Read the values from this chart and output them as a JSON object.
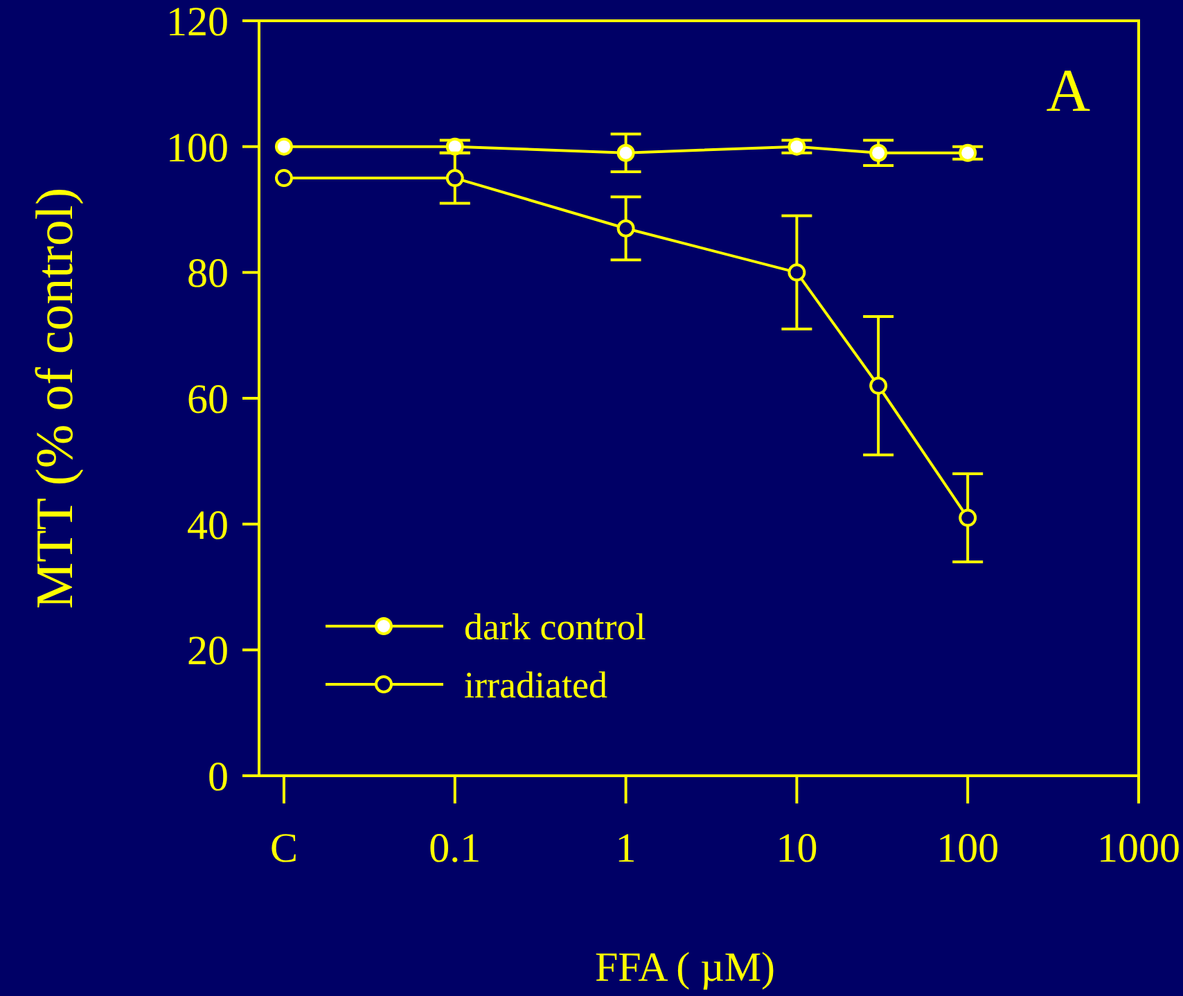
{
  "chart_data": {
    "type": "line",
    "xlabel": "FFA (  µM)",
    "ylabel": "MTT (% of control)",
    "annotations": [
      "A"
    ],
    "log": "x",
    "x": [
      0.01,
      0.1,
      1,
      10,
      30,
      100
    ],
    "xlim": [
      0.00715,
      1000
    ],
    "xticks": [
      {
        "value": 0.01,
        "label": "C"
      },
      {
        "value": 0.1,
        "label": "0.1"
      },
      1,
      10,
      100,
      1000
    ],
    "ylim": [
      0,
      120
    ],
    "yticks": [
      0,
      20,
      40,
      60,
      80,
      100,
      120
    ],
    "marker": "circle",
    "legend": "bottom left",
    "grid": false,
    "series": [
      {
        "name": "dark control",
        "color": "#ffff00",
        "values": [
          100,
          100,
          99,
          100,
          99,
          99
        ],
        "errors": [
          null,
          1,
          3,
          1,
          2,
          1
        ]
      },
      {
        "name": "irradiated",
        "color": "#ffff00",
        "values": [
          95,
          95,
          87,
          80,
          62,
          41
        ],
        "errors": [
          null,
          4,
          5,
          9,
          11,
          7
        ]
      }
    ]
  }
}
